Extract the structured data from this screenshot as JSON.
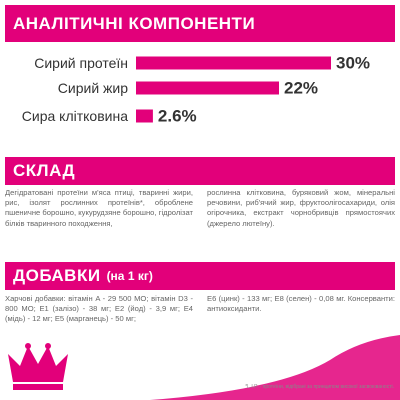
{
  "header": {
    "title": "АНАЛІТИЧНІ КОМПОНЕНТИ"
  },
  "chart_data": {
    "type": "bar",
    "orientation": "horizontal",
    "categories": [
      "Сирий протеїн",
      "Сирий жир",
      "Сира клітковина"
    ],
    "values": [
      30,
      22,
      2.6
    ],
    "value_labels": [
      "30%",
      "22%",
      "2.6%"
    ],
    "color": "#e2007a"
  },
  "composition": {
    "title": "СКЛАД",
    "columns": [
      "Дегідратовані протеїни м'яса птиці, тваринні жири, рис, ізолят рослинних протеїнів*, оброблене пшеничне борошно, кукурудзяне борошно, гідролізат білків тваринного походження,",
      "рослинна клітковина, буряковий жом, мінеральні речовини, риб'ячий жир, фруктоолігосахариди, олія огірочника, екстракт чорнобривців прямостоячих (джерело лютеїну)."
    ]
  },
  "additives": {
    "title": "ДОБАВКИ",
    "subtitle": "(на 1 кг)",
    "columns": [
      "Харчові добавки: вітамін A - 29 500 МО; вітамін D3 - 800 МО; E1 (залізо) - 38 мг; E2 (йод) - 3,9 мг; E4 (мідь) - 12 мг; E5 (марганець) - 50 мг;",
      "E6 (цинк) - 133 мг; E8 (селен) - 0,08 мг. Консерванти: антиоксиданти."
    ]
  },
  "footnote": "*L.I.P. - протеїни, відібрані за принципом високої засвоюваності."
}
